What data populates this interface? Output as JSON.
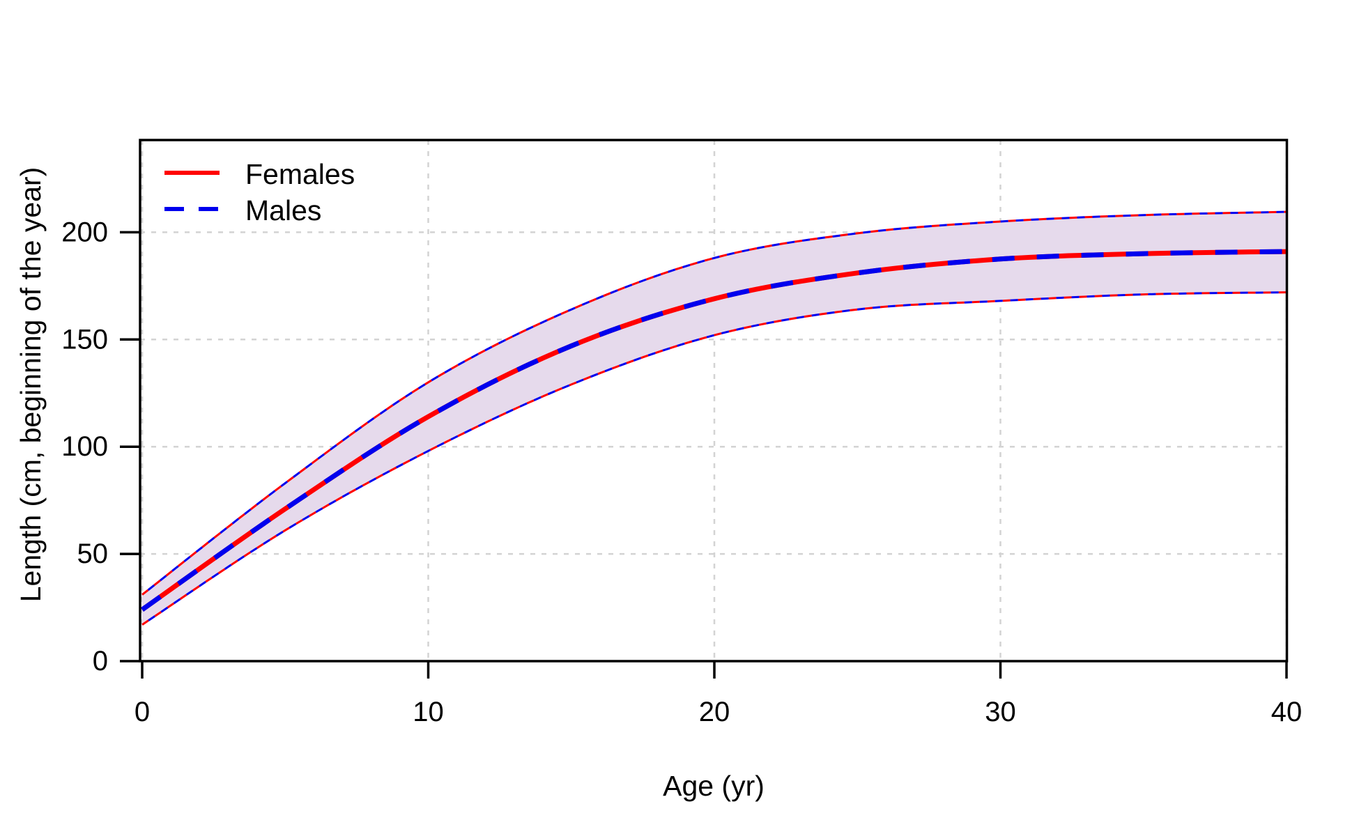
{
  "figure": {
    "background": "#ffffff",
    "description": "Growth curve plot of length at age with overlapping female and male curves and a shared confidence band"
  },
  "chart_data": {
    "type": "line",
    "title": "",
    "xlabel": "Age (yr)",
    "ylabel": "Length (cm, beginning of the year)",
    "xlim": [
      0,
      40
    ],
    "ylim": [
      0,
      243
    ],
    "xticks": [
      0,
      10,
      20,
      30,
      40
    ],
    "yticks": [
      0,
      50,
      100,
      150,
      200
    ],
    "grid": {
      "shown": true,
      "style": "dashed",
      "color": "#D3D3D3"
    },
    "legend_position": "top-left",
    "x": [
      0,
      5,
      10,
      15,
      20,
      25,
      30,
      35,
      40
    ],
    "series": [
      {
        "name": "Females",
        "color": "#FF0000",
        "line_style": "solid",
        "values": [
          24,
          71,
          114,
          147,
          169,
          181,
          187.5,
          190,
          191
        ]
      },
      {
        "name": "Males",
        "color": "#0000EE",
        "line_style": "dashed",
        "values": [
          24,
          71,
          114,
          147,
          169,
          181,
          187.5,
          190,
          191
        ]
      }
    ],
    "confidence_band": {
      "fill": "#E6DAEC",
      "edge_colors": [
        "#FF0000",
        "#0000EE"
      ],
      "lower": [
        17,
        61,
        98,
        129,
        152,
        164,
        168,
        171,
        172
      ],
      "upper": [
        31,
        83,
        130,
        164,
        188,
        199.5,
        205,
        208,
        209.5
      ]
    },
    "colors": {
      "females": "#FF0000",
      "males": "#0000EE",
      "band_fill": "#E6DAEC",
      "grid": "#D3D3D3",
      "axis": "#000000"
    }
  },
  "legend": {
    "items": [
      {
        "label": "Females",
        "color": "#FF0000",
        "style": "solid"
      },
      {
        "label": "Males",
        "color": "#0000EE",
        "style": "dashed"
      }
    ]
  }
}
